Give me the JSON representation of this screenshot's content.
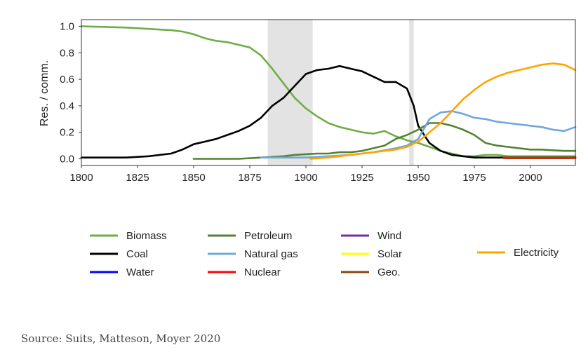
{
  "chart_data": {
    "type": "line",
    "title": "",
    "xlabel": "",
    "ylabel": "Res. / comm.",
    "xlim": [
      1800,
      2020
    ],
    "ylim": [
      -0.05,
      1.05
    ],
    "xticks": [
      1800,
      1825,
      1850,
      1875,
      1900,
      1925,
      1950,
      1975,
      2000
    ],
    "xtick_labels": [
      "1800",
      "1825",
      "1850",
      "1875",
      "1900",
      "1925",
      "1950",
      "1975",
      "2000"
    ],
    "yticks": [
      0.0,
      0.2,
      0.4,
      0.6,
      0.8,
      1.0
    ],
    "ytick_labels": [
      "0.0",
      "0.2",
      "0.4",
      "0.6",
      "0.8",
      "1.0"
    ],
    "grid": false,
    "legend_position": "below",
    "shaded_regions": [
      [
        1883,
        1903
      ],
      [
        1946,
        1948
      ]
    ],
    "series": [
      {
        "name": "Biomass",
        "color": "#70ad47",
        "x": [
          1800,
          1820,
          1830,
          1835,
          1840,
          1845,
          1850,
          1855,
          1860,
          1865,
          1870,
          1875,
          1880,
          1885,
          1890,
          1895,
          1900,
          1905,
          1910,
          1915,
          1920,
          1925,
          1930,
          1935,
          1940,
          1945,
          1950,
          1955,
          1960,
          1965,
          1970,
          1975,
          1980,
          1985,
          1990,
          1995,
          2000,
          2005,
          2010,
          2015,
          2020
        ],
        "y": [
          1.0,
          0.99,
          0.98,
          0.975,
          0.97,
          0.96,
          0.94,
          0.91,
          0.89,
          0.88,
          0.86,
          0.84,
          0.78,
          0.68,
          0.57,
          0.46,
          0.38,
          0.32,
          0.27,
          0.24,
          0.22,
          0.2,
          0.19,
          0.21,
          0.17,
          0.14,
          0.12,
          0.09,
          0.06,
          0.04,
          0.02,
          0.02,
          0.03,
          0.03,
          0.02,
          0.02,
          0.02,
          0.02,
          0.02,
          0.02,
          0.02
        ]
      },
      {
        "name": "Coal",
        "color": "#000000",
        "x": [
          1800,
          1820,
          1830,
          1840,
          1845,
          1850,
          1855,
          1860,
          1865,
          1870,
          1875,
          1880,
          1885,
          1890,
          1895,
          1900,
          1905,
          1910,
          1915,
          1920,
          1925,
          1930,
          1935,
          1940,
          1945,
          1948,
          1950,
          1955,
          1960,
          1965,
          1970,
          1975,
          1980,
          1985,
          1990,
          2000,
          2020
        ],
        "y": [
          0.01,
          0.01,
          0.02,
          0.04,
          0.07,
          0.11,
          0.13,
          0.15,
          0.18,
          0.21,
          0.25,
          0.31,
          0.4,
          0.46,
          0.55,
          0.64,
          0.67,
          0.68,
          0.7,
          0.68,
          0.66,
          0.62,
          0.58,
          0.58,
          0.53,
          0.4,
          0.25,
          0.12,
          0.06,
          0.03,
          0.02,
          0.01,
          0.01,
          0.01,
          0.01,
          0.01,
          0.01
        ]
      },
      {
        "name": "Water",
        "color": "#0000ff",
        "x": [],
        "y": []
      },
      {
        "name": "Petroleum",
        "color": "#548235",
        "x": [
          1850,
          1860,
          1870,
          1880,
          1885,
          1890,
          1895,
          1900,
          1905,
          1910,
          1915,
          1920,
          1925,
          1930,
          1935,
          1940,
          1945,
          1950,
          1955,
          1960,
          1965,
          1970,
          1975,
          1980,
          1985,
          1990,
          1995,
          2000,
          2005,
          2010,
          2015,
          2020
        ],
        "y": [
          0.0,
          0.0,
          0.0,
          0.01,
          0.015,
          0.02,
          0.03,
          0.035,
          0.04,
          0.04,
          0.05,
          0.05,
          0.06,
          0.08,
          0.1,
          0.15,
          0.18,
          0.22,
          0.27,
          0.27,
          0.25,
          0.22,
          0.18,
          0.12,
          0.1,
          0.09,
          0.08,
          0.07,
          0.07,
          0.065,
          0.06,
          0.06
        ]
      },
      {
        "name": "Natural gas",
        "color": "#6fa8dc",
        "x": [
          1880,
          1890,
          1900,
          1910,
          1920,
          1930,
          1940,
          1945,
          1950,
          1955,
          1960,
          1965,
          1970,
          1975,
          1980,
          1985,
          1990,
          1995,
          2000,
          2005,
          2010,
          2015,
          2020
        ],
        "y": [
          0.01,
          0.01,
          0.01,
          0.02,
          0.03,
          0.05,
          0.08,
          0.1,
          0.15,
          0.3,
          0.35,
          0.36,
          0.34,
          0.31,
          0.3,
          0.28,
          0.27,
          0.26,
          0.25,
          0.24,
          0.22,
          0.21,
          0.24
        ]
      },
      {
        "name": "Nuclear",
        "color": "#ff0000",
        "x": [
          1988,
          2000,
          2020
        ],
        "y": [
          0.005,
          0.005,
          0.005
        ]
      },
      {
        "name": "Wind",
        "color": "#7030a0",
        "x": [],
        "y": []
      },
      {
        "name": "Solar",
        "color": "#ffff00",
        "x": [],
        "y": []
      },
      {
        "name": "Geo.",
        "color": "#8b4513",
        "x": [
          1988,
          2000,
          2020
        ],
        "y": [
          0.01,
          0.01,
          0.01
        ]
      },
      {
        "name": "Electricity",
        "color": "#ffa500",
        "x": [
          1902,
          1910,
          1920,
          1930,
          1940,
          1945,
          1950,
          1955,
          1960,
          1965,
          1970,
          1975,
          1980,
          1985,
          1990,
          1995,
          2000,
          2005,
          2010,
          2015,
          2020
        ],
        "y": [
          0.0,
          0.01,
          0.03,
          0.05,
          0.07,
          0.09,
          0.13,
          0.2,
          0.27,
          0.36,
          0.45,
          0.52,
          0.58,
          0.62,
          0.65,
          0.67,
          0.69,
          0.71,
          0.72,
          0.71,
          0.67
        ]
      }
    ],
    "legend_order": [
      "Biomass",
      "Coal",
      "Water",
      "Petroleum",
      "Natural gas",
      "Nuclear",
      "Wind",
      "Solar",
      "Geo.",
      "Electricity"
    ]
  },
  "source_text": "Source: Suits, Matteson, Moyer 2020"
}
